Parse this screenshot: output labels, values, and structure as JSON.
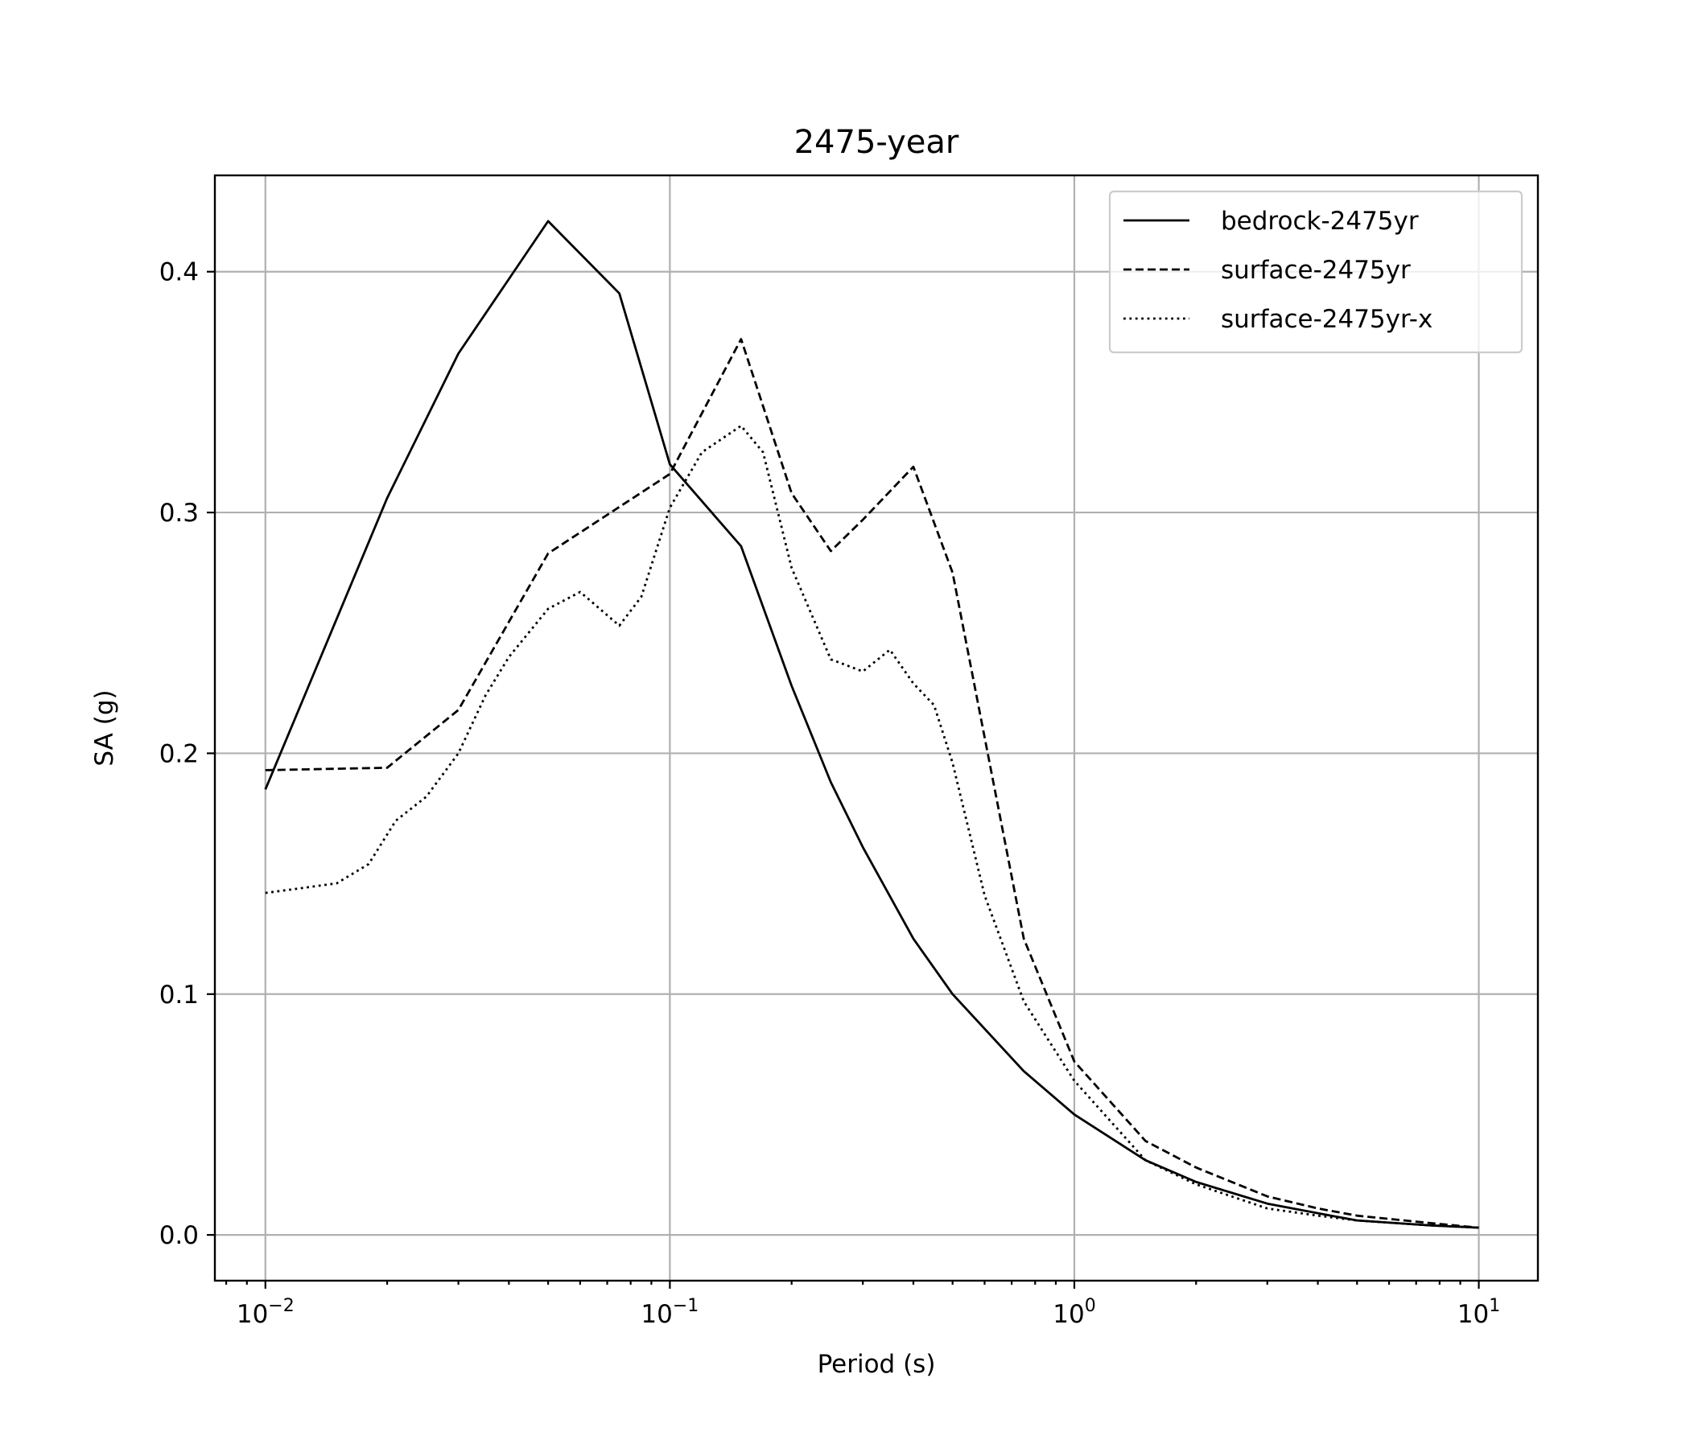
{
  "chart_data": {
    "type": "line",
    "title": "2475-year",
    "xlabel": "Period (s)",
    "ylabel": "SA (g)",
    "xscale": "log",
    "xlim": [
      0.0075,
      14
    ],
    "ylim": [
      -0.019,
      0.44
    ],
    "grid": true,
    "legend_position": "top-right",
    "x_ticks": [
      {
        "value": 0.01,
        "base": "10",
        "exp": "−2"
      },
      {
        "value": 0.1,
        "base": "10",
        "exp": "−1"
      },
      {
        "value": 1,
        "base": "10",
        "exp": "0"
      },
      {
        "value": 10,
        "base": "10",
        "exp": "1"
      }
    ],
    "y_ticks": [
      {
        "value": 0.0,
        "label": "0.0"
      },
      {
        "value": 0.1,
        "label": "0.1"
      },
      {
        "value": 0.2,
        "label": "0.2"
      },
      {
        "value": 0.3,
        "label": "0.3"
      },
      {
        "value": 0.4,
        "label": "0.4"
      }
    ],
    "series": [
      {
        "name": "bedrock-2475yr",
        "dash": "solid",
        "x": [
          0.01,
          0.02,
          0.03,
          0.05,
          0.075,
          0.1,
          0.15,
          0.2,
          0.25,
          0.3,
          0.4,
          0.5,
          0.75,
          1.0,
          1.5,
          2.0,
          3.0,
          4.0,
          5.0,
          7.5,
          10.0
        ],
        "y": [
          0.185,
          0.306,
          0.366,
          0.421,
          0.391,
          0.32,
          0.286,
          0.228,
          0.188,
          0.161,
          0.123,
          0.1,
          0.068,
          0.05,
          0.031,
          0.022,
          0.013,
          0.009,
          0.006,
          0.004,
          0.003
        ]
      },
      {
        "name": "surface-2475yr",
        "dash": "dashed",
        "x": [
          0.01,
          0.02,
          0.03,
          0.05,
          0.1,
          0.15,
          0.2,
          0.25,
          0.3,
          0.4,
          0.5,
          0.75,
          1.0,
          1.5,
          2.0,
          3.0,
          4.0,
          5.0,
          7.5,
          10.0
        ],
        "y": [
          0.193,
          0.194,
          0.218,
          0.283,
          0.316,
          0.372,
          0.308,
          0.284,
          0.297,
          0.319,
          0.275,
          0.123,
          0.072,
          0.039,
          0.028,
          0.016,
          0.011,
          0.008,
          0.005,
          0.003
        ]
      },
      {
        "name": "surface-2475yr-x",
        "dash": "dotted",
        "x": [
          0.01,
          0.015,
          0.018,
          0.021,
          0.025,
          0.03,
          0.035,
          0.04,
          0.05,
          0.06,
          0.065,
          0.075,
          0.085,
          0.1,
          0.12,
          0.15,
          0.17,
          0.2,
          0.25,
          0.3,
          0.35,
          0.4,
          0.45,
          0.5,
          0.6,
          0.75,
          1.0,
          1.5,
          2.0,
          3.0,
          4.0,
          5.0,
          7.5,
          10.0
        ],
        "y": [
          0.142,
          0.146,
          0.154,
          0.172,
          0.182,
          0.2,
          0.224,
          0.24,
          0.26,
          0.267,
          0.262,
          0.253,
          0.265,
          0.302,
          0.325,
          0.336,
          0.325,
          0.277,
          0.239,
          0.234,
          0.243,
          0.229,
          0.22,
          0.196,
          0.141,
          0.097,
          0.064,
          0.031,
          0.021,
          0.011,
          0.008,
          0.006,
          0.004,
          0.003
        ]
      }
    ]
  }
}
